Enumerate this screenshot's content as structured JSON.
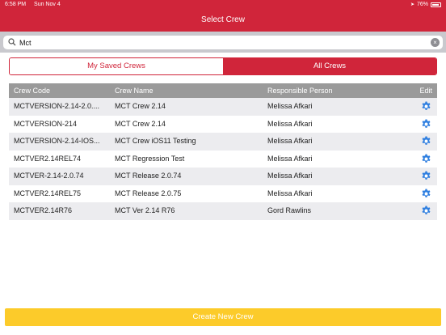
{
  "status_bar": {
    "time": "6:58 PM",
    "date": "Sun Nov 4",
    "battery": "76%"
  },
  "nav": {
    "title": "Select Crew"
  },
  "search": {
    "value": "Mct",
    "placeholder": ""
  },
  "tabs": {
    "saved": "My Saved Crews",
    "all": "All Crews",
    "selected": "All Crews"
  },
  "table": {
    "headers": {
      "code": "Crew Code",
      "name": "Crew Name",
      "person": "Responsible Person",
      "edit": "Edit"
    },
    "rows": [
      {
        "code": "MCTVERSION-2.14-2.0....",
        "name": "MCT Crew 2.14",
        "person": "Melissa Afkari"
      },
      {
        "code": "MCTVERSION-214",
        "name": "MCT Crew 2.14",
        "person": "Melissa Afkari"
      },
      {
        "code": "MCTVERSION-2.14-IOS...",
        "name": "MCT Crew iOS11 Testing",
        "person": "Melissa Afkari"
      },
      {
        "code": "MCTVER2.14REL74",
        "name": "MCT Regression Test",
        "person": "Melissa Afkari"
      },
      {
        "code": "MCTVER-2.14-2.0.74",
        "name": "MCT Release 2.0.74",
        "person": "Melissa Afkari"
      },
      {
        "code": "MCTVER2.14REL75",
        "name": "MCT Release 2.0.75",
        "person": "Melissa Afkari"
      },
      {
        "code": "MCTVER2.14R76",
        "name": "MCT Ver 2.14 R76",
        "person": "Gord Rawlins"
      }
    ]
  },
  "footer": {
    "create_label": "Create New Crew"
  },
  "colors": {
    "brand_red": "#d0253a",
    "accent_yellow": "#fccb2a",
    "gear_blue": "#2f7fe0"
  }
}
